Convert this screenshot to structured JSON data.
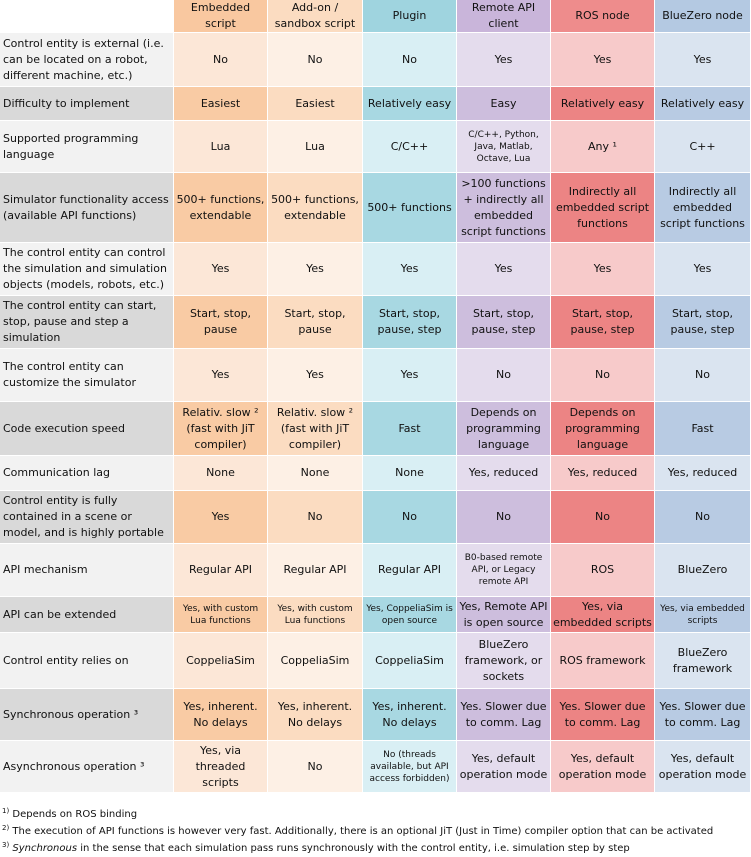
{
  "columns": [
    "Embedded script",
    "Add-on / sandbox script",
    "Plugin",
    "Remote API client",
    "ROS node",
    "BlueZero node"
  ],
  "rows": [
    {
      "label": "Control entity is external (i.e. can be located on a robot, different machine, etc.)",
      "cells": [
        "No",
        "No",
        "No",
        "Yes",
        "Yes",
        "Yes"
      ]
    },
    {
      "label": "Difficulty to implement",
      "cells": [
        "Easiest",
        "Easiest",
        "Relatively easy",
        "Easy",
        "Relatively easy",
        "Relatively easy"
      ]
    },
    {
      "label": "Supported programming language",
      "cells": [
        "Lua",
        "Lua",
        "C/C++",
        "C/C++, Python, Java, Matlab, Octave, Lua",
        "Any ¹",
        "C++"
      ]
    },
    {
      "label": "Simulator functionality access (available API functions)",
      "cells": [
        "500+ functions, extendable",
        "500+ functions, extendable",
        "500+ functions",
        ">100 functions + indirectly all embedded script functions",
        "Indirectly all embedded script functions",
        "Indirectly all embedded script functions"
      ]
    },
    {
      "label": "The control entity can control the simulation and simulation objects (models, robots, etc.)",
      "cells": [
        "Yes",
        "Yes",
        "Yes",
        "Yes",
        "Yes",
        "Yes"
      ]
    },
    {
      "label": "The control entity can start, stop, pause and step a simulation",
      "cells": [
        "Start, stop, pause",
        "Start, stop, pause",
        "Start, stop, pause, step",
        "Start, stop, pause, step",
        "Start, stop, pause, step",
        "Start, stop, pause, step"
      ]
    },
    {
      "label": "The control entity can customize the simulator",
      "cells": [
        "Yes",
        "Yes",
        "Yes",
        "No",
        "No",
        "No"
      ]
    },
    {
      "label": "Code execution speed",
      "cells": [
        "Relativ. slow ² (fast with JiT compiler)",
        "Relativ. slow ² (fast with JiT compiler)",
        "Fast",
        "Depends on programming language",
        "Depends on programming language",
        "Fast"
      ]
    },
    {
      "label": "Communication lag",
      "cells": [
        "None",
        "None",
        "None",
        "Yes, reduced",
        "Yes, reduced",
        "Yes, reduced"
      ]
    },
    {
      "label": "Control entity is fully contained in a scene or model, and is highly portable",
      "cells": [
        "Yes",
        "No",
        "No",
        "No",
        "No",
        "No"
      ]
    },
    {
      "label": "API mechanism",
      "cells": [
        "Regular API",
        "Regular API",
        "Regular API",
        "B0-based remote API, or Legacy remote API",
        "ROS",
        "BlueZero"
      ]
    },
    {
      "label": "API can be extended",
      "cells": [
        "Yes, with custom Lua functions",
        "Yes, with custom Lua functions",
        "Yes, CoppeliaSim is open source",
        "Yes, Remote API is open source",
        "Yes, via embedded scripts",
        "Yes, via embedded scripts"
      ]
    },
    {
      "label": "Control entity relies on",
      "cells": [
        "CoppeliaSim",
        "CoppeliaSim",
        "CoppeliaSim",
        "BlueZero framework, or sockets",
        "ROS framework",
        "BlueZero framework"
      ]
    },
    {
      "label": "Synchronous operation ³",
      "cells": [
        "Yes, inherent. No delays",
        "Yes, inherent. No delays",
        "Yes, inherent. No delays",
        "Yes. Slower due to comm. Lag",
        "Yes. Slower due to comm. Lag",
        "Yes. Slower due to comm. Lag"
      ]
    },
    {
      "label": "Asynchronous operation ³",
      "cells": [
        "Yes, via threaded scripts",
        "No",
        "No (threads available, but API access forbidden)",
        "Yes, default operation mode",
        "Yes, default operation mode",
        "Yes, default operation mode"
      ]
    }
  ],
  "footnotes": {
    "n1_mark": "1)",
    "n1_text": "Depends on ROS binding",
    "n2_mark": "2)",
    "n2_text": "The execution of API functions is however very fast. Additionally, there is an optional JiT (Just in Time) compiler option that can be activated",
    "n3_mark": "3)",
    "n3_em": "Synchronous",
    "n3_text": " in the sense that each simulation pass runs synchronously with the control entity, i.e. simulation step by step"
  }
}
